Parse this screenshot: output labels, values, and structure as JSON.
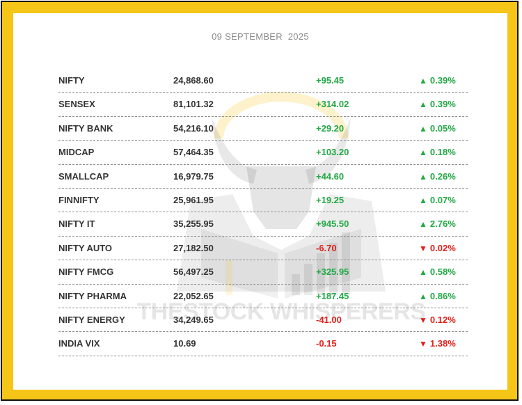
{
  "date": "09 SEPTEMBER  2025",
  "watermark_text": "THESTOCK WHISPERERS",
  "colors": {
    "frame": "#f5c518",
    "up": "#22a845",
    "down": "#e0201c"
  },
  "rows": [
    {
      "name": "NIFTY",
      "value": "24,868.60",
      "change": "+95.45",
      "pct": "0.39%",
      "dir": "up"
    },
    {
      "name": "SENSEX",
      "value": "81,101.32",
      "change": "+314.02",
      "pct": "0.39%",
      "dir": "up"
    },
    {
      "name": "NIFTY BANK",
      "value": "54,216.10",
      "change": "+29.20",
      "pct": "0.05%",
      "dir": "up"
    },
    {
      "name": "MIDCAP",
      "value": "57,464.35",
      "change": "+103.20",
      "pct": "0.18%",
      "dir": "up"
    },
    {
      "name": "SMALLCAP",
      "value": "16,979.75",
      "change": "+44.60",
      "pct": "0.26%",
      "dir": "up"
    },
    {
      "name": "FINNIFTY",
      "value": "25,961.95",
      "change": "+19.25",
      "pct": "0.07%",
      "dir": "up"
    },
    {
      "name": "NIFTY IT",
      "value": "35,255.95",
      "change": "+945.50",
      "pct": "2.76%",
      "dir": "up"
    },
    {
      "name": "NIFTY AUTO",
      "value": "27,182.50",
      "change": "-6.70",
      "pct": "0.02%",
      "dir": "down"
    },
    {
      "name": "NIFTY FMCG",
      "value": "56,497.25",
      "change": "+325.95",
      "pct": "0.58%",
      "dir": "up"
    },
    {
      "name": "NIFTY PHARMA",
      "value": "22,052.65",
      "change": "+187.45",
      "pct": "0.86%",
      "dir": "up"
    },
    {
      "name": "NIFTY ENERGY",
      "value": "34,249.65",
      "change": "-41.00",
      "pct": "0.12%",
      "dir": "down"
    },
    {
      "name": "INDIA VIX",
      "value": "10.69",
      "change": "-0.15",
      "pct": "1.38%",
      "dir": "down"
    }
  ]
}
